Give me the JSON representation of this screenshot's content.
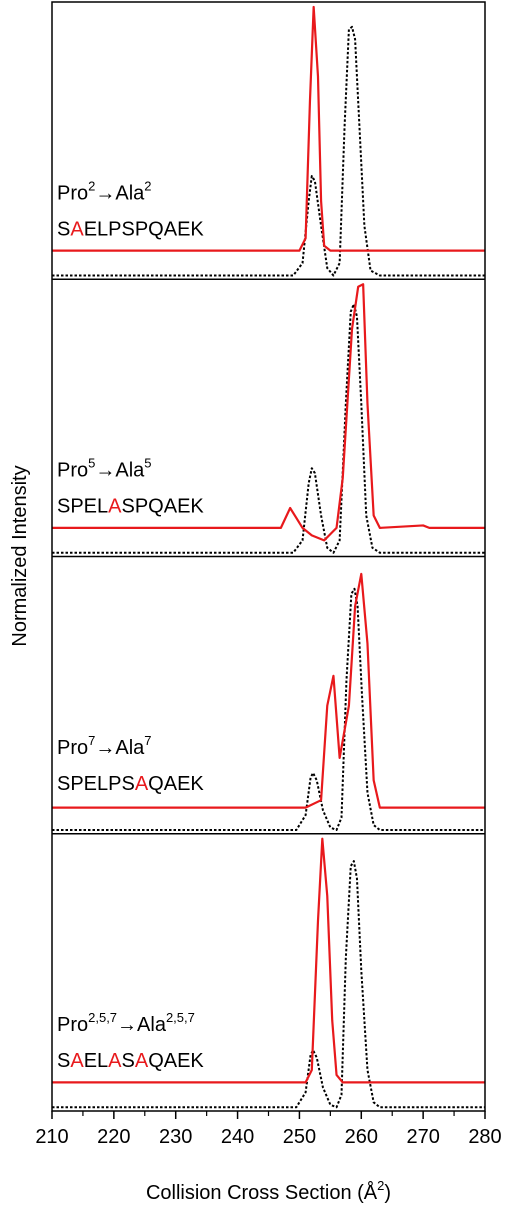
{
  "chart_data": {
    "type": "line",
    "xlabel": [
      {
        "text": "Collision Cross Section (Å"
      },
      {
        "text": "2",
        "style": "sup"
      },
      {
        "text": ")"
      }
    ],
    "ylabel": "Normalized Intensity",
    "xlim": [
      210,
      280
    ],
    "xticks": [
      210,
      220,
      230,
      240,
      250,
      260,
      270,
      280
    ],
    "xminorticks": [
      215,
      225,
      235,
      245,
      255,
      265,
      275
    ],
    "ylim": [
      -0.015,
      1.1
    ],
    "panels": [
      {
        "label": [
          {
            "text": "Pro"
          },
          {
            "text": "2",
            "style": "sup"
          },
          {
            "text": "→Ala"
          },
          {
            "text": "2",
            "style": "sup"
          }
        ],
        "sequence": [
          {
            "text": "S"
          },
          {
            "text": "A",
            "color": "#e8191c"
          },
          {
            "text": "ELPSPQAEK"
          }
        ],
        "series": [
          {
            "color": "#000000",
            "dash": true,
            "x": [
              210,
              249,
              250.5,
              251.5,
              252,
              252.5,
              253.5,
              254.5,
              255.5,
              256.5,
              257.3,
              258,
              258.5,
              259,
              259.5,
              260.5,
              261.5,
              263,
              280
            ],
            "values": [
              0,
              0,
              0.05,
              0.3,
              0.4,
              0.38,
              0.2,
              0.03,
              0,
              0.05,
              0.6,
              0.99,
              1,
              0.95,
              0.7,
              0.2,
              0.02,
              0,
              0
            ]
          },
          {
            "color": "#e8191c",
            "dash": false,
            "x": [
              210,
              250,
              251,
              251.7,
              252.3,
              253,
              253.5,
              254,
              255,
              280
            ],
            "values": [
              0.1,
              0.1,
              0.15,
              0.7,
              1.08,
              0.8,
              0.3,
              0.12,
              0.1,
              0.1
            ]
          }
        ]
      },
      {
        "label": [
          {
            "text": "Pro"
          },
          {
            "text": "5",
            "style": "sup"
          },
          {
            "text": "→Ala"
          },
          {
            "text": "5",
            "style": "sup"
          }
        ],
        "sequence": [
          {
            "text": "SPEL"
          },
          {
            "text": "A",
            "color": "#e8191c"
          },
          {
            "text": "SPQAEK"
          }
        ],
        "series": [
          {
            "color": "#000000",
            "dash": true,
            "x": [
              210,
              249,
              250.5,
              251.5,
              252,
              252.5,
              253.5,
              254.5,
              255.5,
              256.5,
              257.5,
              258.3,
              258.8,
              259.3,
              260,
              260.8,
              261.8,
              263,
              280
            ],
            "values": [
              0,
              0,
              0.05,
              0.28,
              0.34,
              0.32,
              0.15,
              0.02,
              0,
              0.05,
              0.6,
              0.97,
              1,
              0.95,
              0.6,
              0.15,
              0.02,
              0,
              0
            ]
          },
          {
            "color": "#e8191c",
            "dash": false,
            "x": [
              210,
              247,
              248.5,
              249.5,
              250.5,
              252,
              254,
              256,
              257,
              258.5,
              259.5,
              260.3,
              261,
              262,
              263,
              270,
              271,
              280
            ],
            "values": [
              0.1,
              0.1,
              0.18,
              0.14,
              0.1,
              0.07,
              0.05,
              0.1,
              0.3,
              0.9,
              1.07,
              1.08,
              0.6,
              0.15,
              0.1,
              0.11,
              0.1,
              0.1
            ]
          }
        ]
      },
      {
        "label": [
          {
            "text": "Pro"
          },
          {
            "text": "7",
            "style": "sup"
          },
          {
            "text": "→Ala"
          },
          {
            "text": "7",
            "style": "sup"
          }
        ],
        "sequence": [
          {
            "text": "SPELPS"
          },
          {
            "text": "A",
            "color": "#e8191c"
          },
          {
            "text": "QAEK"
          }
        ],
        "series": [
          {
            "color": "#000000",
            "dash": true,
            "x": [
              210,
              249.5,
              251,
              251.8,
              252.2,
              252.8,
              253.8,
              255,
              256,
              256.8,
              257.6,
              258.4,
              258.9,
              259.4,
              260.1,
              261,
              262,
              263,
              280
            ],
            "values": [
              0,
              0,
              0.06,
              0.21,
              0.23,
              0.2,
              0.08,
              0.01,
              0,
              0.05,
              0.6,
              0.95,
              0.97,
              0.9,
              0.55,
              0.15,
              0.02,
              0,
              0
            ]
          },
          {
            "color": "#e8191c",
            "dash": false,
            "x": [
              210,
              251,
              253.5,
              254.5,
              255.5,
              256.5,
              258,
              259,
              260,
              261,
              262,
              263,
              280
            ],
            "values": [
              0.09,
              0.09,
              0.12,
              0.5,
              0.62,
              0.29,
              0.5,
              0.9,
              1.03,
              0.75,
              0.2,
              0.09,
              0.09
            ]
          }
        ]
      },
      {
        "label": [
          {
            "text": "Pro"
          },
          {
            "text": "2,5,7",
            "style": "sup"
          },
          {
            "text": "→Ala"
          },
          {
            "text": "2,5,7",
            "style": "sup"
          }
        ],
        "sequence": [
          {
            "text": "S"
          },
          {
            "text": "A",
            "color": "#e8191c"
          },
          {
            "text": "EL"
          },
          {
            "text": "A",
            "color": "#e8191c"
          },
          {
            "text": "S"
          },
          {
            "text": "A",
            "color": "#e8191c"
          },
          {
            "text": "QAEK"
          }
        ],
        "series": [
          {
            "color": "#000000",
            "dash": true,
            "x": [
              210,
              249.5,
              251,
              251.8,
              252.2,
              252.8,
              253.8,
              255,
              256,
              256.8,
              257.5,
              258.3,
              258.8,
              259.3,
              260,
              261,
              262,
              263,
              280
            ],
            "values": [
              0,
              0,
              0.06,
              0.21,
              0.23,
              0.2,
              0.08,
              0.01,
              0,
              0.05,
              0.6,
              0.97,
              0.99,
              0.92,
              0.55,
              0.15,
              0.02,
              0,
              0
            ]
          },
          {
            "color": "#e8191c",
            "dash": false,
            "x": [
              210,
              251,
              252,
              253,
              253.7,
              254.5,
              255.3,
              256,
              257,
              280
            ],
            "values": [
              0.1,
              0.1,
              0.15,
              0.75,
              1.08,
              0.85,
              0.35,
              0.13,
              0.1,
              0.1
            ]
          }
        ]
      }
    ]
  }
}
